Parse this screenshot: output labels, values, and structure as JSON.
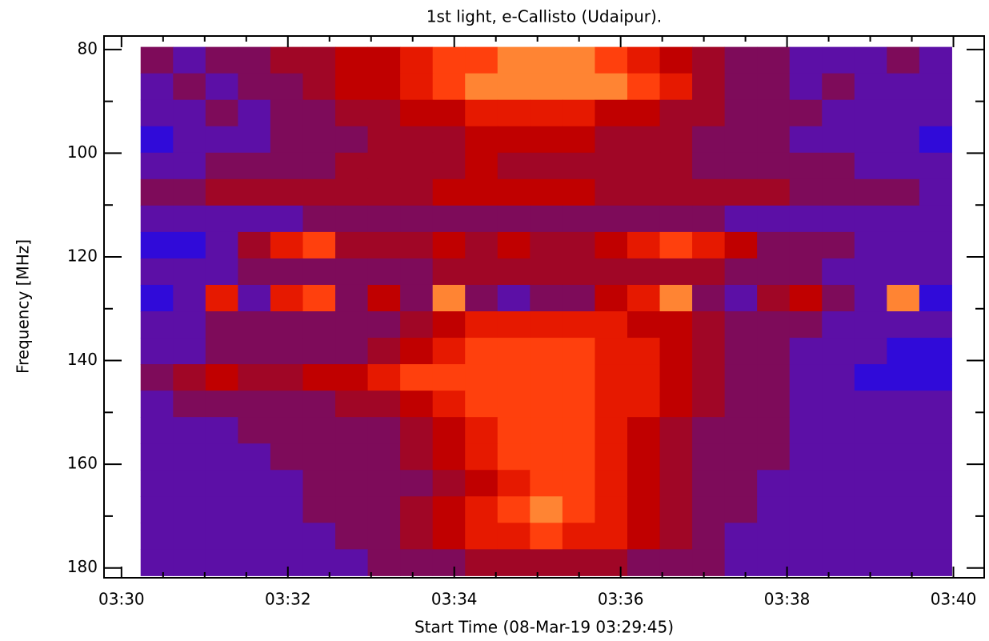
{
  "chart_data": {
    "type": "heatmap",
    "title": "1st light, e-Callisto (Udaipur).",
    "xlabel": "Start Time (08-Mar-19 03:29:45)",
    "ylabel": "Frequency [MHz]",
    "xlim": [
      29.79,
      40.37
    ],
    "ylim": [
      77.4,
      181.9
    ],
    "y_inverted": true,
    "xticks": [
      {
        "value": 30,
        "label": "03:30"
      },
      {
        "value": 32,
        "label": "03:32"
      },
      {
        "value": 34,
        "label": "03:34"
      },
      {
        "value": 36,
        "label": "03:36"
      },
      {
        "value": 38,
        "label": "03:38"
      },
      {
        "value": 40,
        "label": "03:40"
      }
    ],
    "xminorticks": [
      30.5,
      31,
      31.5,
      32.5,
      33,
      33.5,
      34.5,
      35,
      35.5,
      36.5,
      37,
      37.5,
      38.5,
      39,
      39.5
    ],
    "yticks": [
      80,
      100,
      120,
      140,
      160,
      180
    ],
    "yminorticks": [
      90,
      110,
      130,
      150,
      170
    ],
    "xbins": [
      30.23,
      30.62,
      31.01,
      31.4,
      31.79,
      32.18,
      32.57,
      32.96,
      33.35,
      33.74,
      34.13,
      34.52,
      34.91,
      35.3,
      35.69,
      36.08,
      36.47,
      36.86,
      37.25,
      37.64,
      38.03,
      38.42,
      38.81,
      39.2,
      39.59,
      39.98
    ],
    "ybins": [
      79.5,
      84.6,
      89.7,
      94.8,
      99.9,
      105,
      110.1,
      115.2,
      120.3,
      125.4,
      130.5,
      135.6,
      140.7,
      145.8,
      150.9,
      156,
      161.1,
      166.2,
      171.3,
      176.4,
      181.5
    ],
    "colorscale": {
      "domain": [
        0,
        10
      ],
      "colors": [
        "#0000ff",
        "#5010c0",
        "#8a0a40",
        "#c00000",
        "#ff2a00",
        "#ff9a40",
        "#ffff30"
      ]
    },
    "values": [
      [
        3,
        2,
        3,
        3,
        4,
        4,
        5,
        5,
        6,
        7,
        7,
        8,
        8,
        8,
        7,
        6,
        5,
        4,
        3,
        3,
        2,
        2,
        2,
        3,
        2
      ],
      [
        2,
        3,
        2,
        3,
        3,
        4,
        5,
        5,
        6,
        7,
        8,
        8,
        8,
        8,
        8,
        7,
        6,
        4,
        3,
        3,
        2,
        3,
        2,
        2,
        2
      ],
      [
        2,
        2,
        3,
        2,
        3,
        3,
        4,
        4,
        5,
        5,
        6,
        6,
        6,
        6,
        5,
        5,
        4,
        4,
        3,
        3,
        3,
        2,
        2,
        2,
        2
      ],
      [
        1,
        2,
        2,
        2,
        3,
        3,
        3,
        4,
        4,
        4,
        5,
        5,
        5,
        5,
        4,
        4,
        4,
        3,
        3,
        3,
        2,
        2,
        2,
        2,
        1
      ],
      [
        2,
        2,
        3,
        3,
        3,
        3,
        4,
        4,
        4,
        4,
        5,
        4,
        4,
        4,
        4,
        4,
        4,
        3,
        3,
        3,
        3,
        3,
        2,
        2,
        2
      ],
      [
        3,
        3,
        4,
        4,
        4,
        4,
        4,
        4,
        4,
        5,
        5,
        5,
        5,
        5,
        4,
        4,
        4,
        4,
        4,
        4,
        3,
        3,
        3,
        3,
        2
      ],
      [
        2,
        2,
        2,
        2,
        2,
        3,
        3,
        3,
        3,
        3,
        3,
        3,
        3,
        3,
        3,
        3,
        3,
        3,
        2,
        2,
        2,
        2,
        2,
        2,
        2
      ],
      [
        1,
        1,
        2,
        4,
        6,
        7,
        4,
        4,
        4,
        5,
        4,
        5,
        4,
        4,
        5,
        6,
        7,
        6,
        5,
        3,
        3,
        3,
        2,
        2,
        2
      ],
      [
        2,
        2,
        2,
        3,
        3,
        3,
        3,
        3,
        3,
        4,
        4,
        4,
        4,
        4,
        4,
        4,
        4,
        4,
        3,
        3,
        3,
        2,
        2,
        2,
        2
      ],
      [
        1,
        2,
        6,
        2,
        6,
        7,
        3,
        5,
        3,
        8,
        3,
        2,
        3,
        3,
        5,
        6,
        8,
        3,
        2,
        4,
        5,
        3,
        2,
        8,
        1
      ],
      [
        2,
        2,
        3,
        3,
        3,
        3,
        3,
        3,
        4,
        5,
        6,
        6,
        6,
        6,
        6,
        5,
        5,
        4,
        3,
        3,
        3,
        2,
        2,
        2,
        2
      ],
      [
        2,
        2,
        3,
        3,
        3,
        3,
        3,
        4,
        5,
        6,
        7,
        7,
        7,
        7,
        6,
        6,
        5,
        4,
        3,
        3,
        2,
        2,
        2,
        1,
        1
      ],
      [
        3,
        4,
        5,
        4,
        4,
        5,
        5,
        6,
        7,
        7,
        7,
        7,
        7,
        7,
        6,
        6,
        5,
        4,
        3,
        3,
        2,
        2,
        1,
        1,
        1
      ],
      [
        2,
        3,
        3,
        3,
        3,
        3,
        4,
        4,
        5,
        6,
        7,
        7,
        7,
        7,
        6,
        6,
        5,
        4,
        3,
        3,
        2,
        2,
        2,
        2,
        2
      ],
      [
        2,
        2,
        2,
        3,
        3,
        3,
        3,
        3,
        4,
        5,
        6,
        7,
        7,
        7,
        6,
        5,
        4,
        3,
        3,
        3,
        2,
        2,
        2,
        2,
        2
      ],
      [
        2,
        2,
        2,
        2,
        3,
        3,
        3,
        3,
        4,
        5,
        6,
        7,
        7,
        7,
        6,
        5,
        4,
        3,
        3,
        3,
        2,
        2,
        2,
        2,
        2
      ],
      [
        2,
        2,
        2,
        2,
        2,
        3,
        3,
        3,
        3,
        4,
        5,
        6,
        7,
        7,
        6,
        5,
        4,
        3,
        3,
        2,
        2,
        2,
        2,
        2,
        2
      ],
      [
        2,
        2,
        2,
        2,
        2,
        3,
        3,
        3,
        4,
        5,
        6,
        7,
        8,
        7,
        6,
        5,
        4,
        3,
        3,
        2,
        2,
        2,
        2,
        2,
        2
      ],
      [
        2,
        2,
        2,
        2,
        2,
        2,
        3,
        3,
        4,
        5,
        6,
        6,
        7,
        6,
        6,
        5,
        4,
        3,
        2,
        2,
        2,
        2,
        2,
        2,
        2
      ],
      [
        2,
        2,
        2,
        2,
        2,
        2,
        2,
        3,
        3,
        3,
        4,
        4,
        4,
        4,
        4,
        3,
        3,
        3,
        2,
        2,
        2,
        2,
        2,
        2,
        2
      ]
    ]
  }
}
